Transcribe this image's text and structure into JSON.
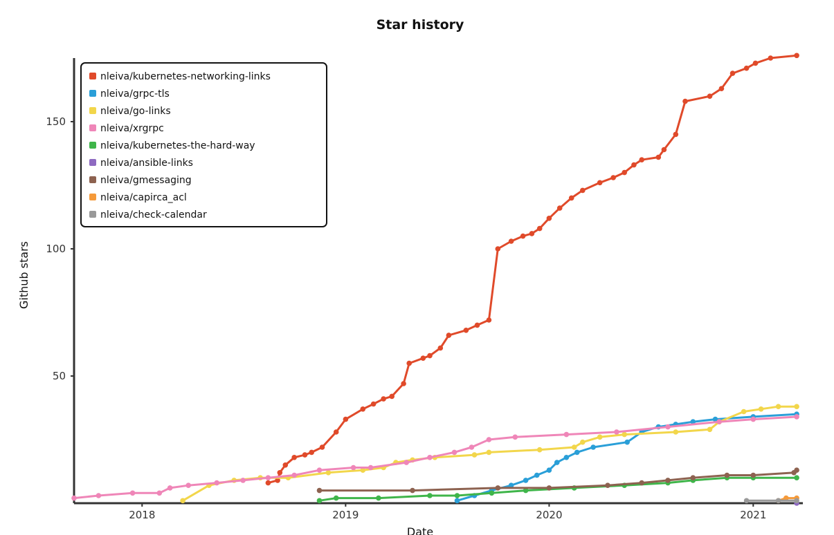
{
  "chart_data": {
    "type": "line",
    "title": "Star history",
    "xlabel": "Date",
    "ylabel": "Github stars",
    "x_range": [
      "2017-09-01",
      "2021-03-31"
    ],
    "ylim": [
      0,
      175
    ],
    "x_ticks": [
      {
        "date": "2018-01-01",
        "label": "2018"
      },
      {
        "date": "2019-01-01",
        "label": "2019"
      },
      {
        "date": "2020-01-01",
        "label": "2020"
      },
      {
        "date": "2021-01-01",
        "label": "2021"
      }
    ],
    "y_ticks": [
      50,
      100,
      150
    ],
    "grid": false,
    "legend_position": "top-left",
    "series": [
      {
        "name": "nleiva/kubernetes-networking-links",
        "color": "#e04a2a",
        "points": [
          [
            "2018-08-15",
            8
          ],
          [
            "2018-09-01",
            9
          ],
          [
            "2018-09-05",
            12
          ],
          [
            "2018-09-15",
            15
          ],
          [
            "2018-10-01",
            18
          ],
          [
            "2018-10-20",
            19
          ],
          [
            "2018-11-01",
            20
          ],
          [
            "2018-11-20",
            22
          ],
          [
            "2018-12-15",
            28
          ],
          [
            "2019-01-01",
            33
          ],
          [
            "2019-02-01",
            37
          ],
          [
            "2019-02-20",
            39
          ],
          [
            "2019-03-10",
            41
          ],
          [
            "2019-03-25",
            42
          ],
          [
            "2019-04-15",
            47
          ],
          [
            "2019-04-25",
            55
          ],
          [
            "2019-05-20",
            57
          ],
          [
            "2019-06-01",
            58
          ],
          [
            "2019-06-20",
            61
          ],
          [
            "2019-07-05",
            66
          ],
          [
            "2019-08-05",
            68
          ],
          [
            "2019-08-25",
            70
          ],
          [
            "2019-09-15",
            72
          ],
          [
            "2019-10-01",
            100
          ],
          [
            "2019-10-25",
            103
          ],
          [
            "2019-11-15",
            105
          ],
          [
            "2019-12-01",
            106
          ],
          [
            "2019-12-15",
            108
          ],
          [
            "2020-01-01",
            112
          ],
          [
            "2020-01-20",
            116
          ],
          [
            "2020-02-10",
            120
          ],
          [
            "2020-03-01",
            123
          ],
          [
            "2020-04-01",
            126
          ],
          [
            "2020-04-25",
            128
          ],
          [
            "2020-05-15",
            130
          ],
          [
            "2020-06-01",
            133
          ],
          [
            "2020-06-15",
            135
          ],
          [
            "2020-07-15",
            136
          ],
          [
            "2020-07-25",
            139
          ],
          [
            "2020-08-15",
            145
          ],
          [
            "2020-09-01",
            158
          ],
          [
            "2020-10-15",
            160
          ],
          [
            "2020-11-05",
            163
          ],
          [
            "2020-11-25",
            169
          ],
          [
            "2020-12-20",
            171
          ],
          [
            "2021-01-05",
            173
          ],
          [
            "2021-02-01",
            175
          ],
          [
            "2021-03-20",
            176
          ]
        ]
      },
      {
        "name": "nleiva/grpc-tls",
        "color": "#2a9fd8",
        "points": [
          [
            "2019-07-20",
            1
          ],
          [
            "2019-08-20",
            3
          ],
          [
            "2019-09-20",
            5
          ],
          [
            "2019-10-25",
            7
          ],
          [
            "2019-11-20",
            9
          ],
          [
            "2019-12-10",
            11
          ],
          [
            "2020-01-01",
            13
          ],
          [
            "2020-01-15",
            16
          ],
          [
            "2020-02-01",
            18
          ],
          [
            "2020-02-20",
            20
          ],
          [
            "2020-03-20",
            22
          ],
          [
            "2020-05-20",
            24
          ],
          [
            "2020-06-15",
            28
          ],
          [
            "2020-07-15",
            30
          ],
          [
            "2020-08-15",
            31
          ],
          [
            "2020-09-15",
            32
          ],
          [
            "2020-10-25",
            33
          ],
          [
            "2021-01-01",
            34
          ],
          [
            "2021-03-20",
            35
          ]
        ]
      },
      {
        "name": "nleiva/go-links",
        "color": "#f2d64b",
        "points": [
          [
            "2018-03-15",
            1
          ],
          [
            "2018-05-01",
            7
          ],
          [
            "2018-06-15",
            9
          ],
          [
            "2018-08-01",
            10
          ],
          [
            "2018-09-20",
            10
          ],
          [
            "2018-12-01",
            12
          ],
          [
            "2019-02-01",
            13
          ],
          [
            "2019-03-10",
            14
          ],
          [
            "2019-04-01",
            16
          ],
          [
            "2019-05-01",
            17
          ],
          [
            "2019-06-10",
            18
          ],
          [
            "2019-08-20",
            19
          ],
          [
            "2019-09-15",
            20
          ],
          [
            "2019-12-15",
            21
          ],
          [
            "2020-02-15",
            22
          ],
          [
            "2020-03-01",
            24
          ],
          [
            "2020-04-01",
            26
          ],
          [
            "2020-05-15",
            27
          ],
          [
            "2020-08-15",
            28
          ],
          [
            "2020-10-15",
            29
          ],
          [
            "2020-11-01",
            32
          ],
          [
            "2020-12-15",
            36
          ],
          [
            "2021-01-15",
            37
          ],
          [
            "2021-02-15",
            38
          ],
          [
            "2021-03-20",
            38
          ]
        ]
      },
      {
        "name": "nleiva/xrgrpc",
        "color": "#ef86b8",
        "points": [
          [
            "2017-09-01",
            2
          ],
          [
            "2017-10-15",
            3
          ],
          [
            "2017-12-15",
            4
          ],
          [
            "2018-02-01",
            4
          ],
          [
            "2018-02-20",
            6
          ],
          [
            "2018-03-25",
            7
          ],
          [
            "2018-05-15",
            8
          ],
          [
            "2018-07-01",
            9
          ],
          [
            "2018-08-15",
            10
          ],
          [
            "2018-10-01",
            11
          ],
          [
            "2018-11-15",
            13
          ],
          [
            "2019-01-15",
            14
          ],
          [
            "2019-02-15",
            14
          ],
          [
            "2019-04-20",
            16
          ],
          [
            "2019-06-01",
            18
          ],
          [
            "2019-07-15",
            20
          ],
          [
            "2019-08-15",
            22
          ],
          [
            "2019-09-15",
            25
          ],
          [
            "2019-11-01",
            26
          ],
          [
            "2020-02-01",
            27
          ],
          [
            "2020-05-01",
            28
          ],
          [
            "2020-08-01",
            30
          ],
          [
            "2020-11-01",
            32
          ],
          [
            "2021-01-01",
            33
          ],
          [
            "2021-03-20",
            34
          ]
        ]
      },
      {
        "name": "nleiva/kubernetes-the-hard-way",
        "color": "#3fb54a",
        "points": [
          [
            "2018-11-15",
            1
          ],
          [
            "2018-12-15",
            2
          ],
          [
            "2019-03-01",
            2
          ],
          [
            "2019-06-01",
            3
          ],
          [
            "2019-07-20",
            3
          ],
          [
            "2019-09-20",
            4
          ],
          [
            "2019-11-20",
            5
          ],
          [
            "2020-02-15",
            6
          ],
          [
            "2020-05-15",
            7
          ],
          [
            "2020-08-01",
            8
          ],
          [
            "2020-09-15",
            9
          ],
          [
            "2020-11-15",
            10
          ],
          [
            "2021-01-01",
            10
          ],
          [
            "2021-03-20",
            10
          ]
        ]
      },
      {
        "name": "nleiva/ansible-links",
        "color": "#8e6ac1",
        "points": [
          [
            "2021-03-20",
            0
          ]
        ]
      },
      {
        "name": "nleiva/gmessaging",
        "color": "#8d6250",
        "points": [
          [
            "2018-11-15",
            5
          ],
          [
            "2019-05-01",
            5
          ],
          [
            "2019-10-01",
            6
          ],
          [
            "2020-01-01",
            6
          ],
          [
            "2020-04-15",
            7
          ],
          [
            "2020-06-15",
            8
          ],
          [
            "2020-08-01",
            9
          ],
          [
            "2020-09-15",
            10
          ],
          [
            "2020-11-15",
            11
          ],
          [
            "2021-01-01",
            11
          ],
          [
            "2021-03-15",
            12
          ],
          [
            "2021-03-20",
            13
          ]
        ]
      },
      {
        "name": "nleiva/capirca_acl",
        "color": "#f59a3a",
        "points": [
          [
            "2021-02-15",
            1
          ],
          [
            "2021-03-01",
            2
          ],
          [
            "2021-03-20",
            2
          ]
        ]
      },
      {
        "name": "nleiva/check-calendar",
        "color": "#999999",
        "points": [
          [
            "2020-12-20",
            1
          ],
          [
            "2021-02-15",
            1
          ],
          [
            "2021-03-20",
            1
          ]
        ]
      }
    ]
  }
}
